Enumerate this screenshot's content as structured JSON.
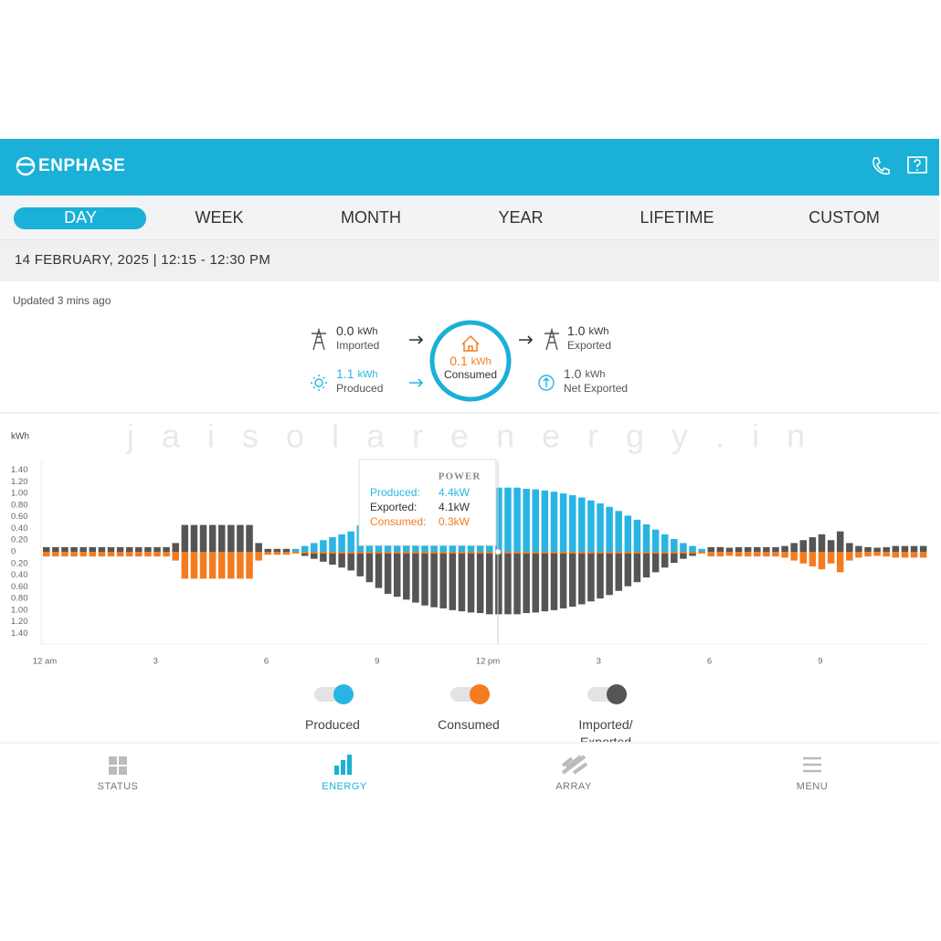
{
  "header": {
    "brand": "ENPHASE"
  },
  "tabs": [
    "DAY",
    "WEEK",
    "MONTH",
    "YEAR",
    "LIFETIME",
    "CUSTOM"
  ],
  "date_range": "14 FEBRUARY, 2025 | 12:15 - 12:30 PM",
  "updated": "Updated 3 mins ago",
  "flow": {
    "imported": {
      "value": "0.0",
      "unit": "kWh",
      "label": "Imported"
    },
    "produced": {
      "value": "1.1",
      "unit": "kWh",
      "label": "Produced"
    },
    "consumed": {
      "value": "0.1",
      "unit": "kWh",
      "label": "Consumed"
    },
    "exported": {
      "value": "1.0",
      "unit": "kWh",
      "label": "Exported"
    },
    "net_exported": {
      "value": "1.0",
      "unit": "kWh",
      "label": "Net Exported"
    }
  },
  "watermark": "j a i s o l a r e n e r g y . i n",
  "chart": {
    "type": "bar",
    "y_label": "kWh",
    "grid": false,
    "x": [
      0,
      0.25,
      0.5,
      0.75,
      1,
      1.25,
      1.5,
      1.75,
      2,
      2.25,
      2.5,
      2.75,
      3,
      3.25,
      3.5,
      3.75,
      4,
      4.25,
      4.5,
      4.75,
      5,
      5.25,
      5.5,
      5.75,
      6,
      6.25,
      6.5,
      6.75,
      7,
      7.25,
      7.5,
      7.75,
      8,
      8.25,
      8.5,
      8.75,
      9,
      9.25,
      9.5,
      9.75,
      10,
      10.25,
      10.5,
      10.75,
      11,
      11.25,
      11.5,
      11.75,
      12,
      12.25,
      12.5,
      12.75,
      13,
      13.25,
      13.5,
      13.75,
      14,
      14.25,
      14.5,
      14.75,
      15,
      15.25,
      15.5,
      15.75,
      16,
      16.25,
      16.5,
      16.75,
      17,
      17.25,
      17.5,
      17.75,
      18,
      18.25,
      18.5,
      18.75,
      19,
      19.25,
      19.5,
      19.75,
      20,
      20.25,
      20.5,
      20.75,
      21,
      21.25,
      21.5,
      21.75,
      22,
      22.25,
      22.5,
      22.75,
      23,
      23.25,
      23.5,
      23.75
    ],
    "xlim": [
      0,
      24
    ],
    "xticks": [
      {
        "value": 0,
        "label": "12 am"
      },
      3,
      6,
      9,
      {
        "value": 12,
        "label": "12 pm"
      },
      {
        "value": 15,
        "label": "3"
      },
      {
        "value": 18,
        "label": "6"
      },
      {
        "value": 21,
        "label": "9"
      }
    ],
    "ylim": [
      -1.55,
      1.55
    ],
    "yticks": [
      {
        "value": 1.4,
        "label": "1.40"
      },
      {
        "value": 1.2,
        "label": "1.20"
      },
      {
        "value": 1.0,
        "label": "1.00"
      },
      {
        "value": 0.8,
        "label": "0.80"
      },
      {
        "value": 0.6,
        "label": "0.60"
      },
      {
        "value": 0.4,
        "label": "0.40"
      },
      {
        "value": 0.2,
        "label": "0.20"
      },
      0,
      {
        "value": -0.2,
        "label": "0.20"
      },
      {
        "value": -0.4,
        "label": "0.40"
      },
      {
        "value": -0.6,
        "label": "0.60"
      },
      {
        "value": -0.8,
        "label": "0.80"
      },
      {
        "value": -1.0,
        "label": "1.00"
      },
      {
        "value": -1.2,
        "label": "1.20"
      },
      {
        "value": -1.4,
        "label": "1.40"
      }
    ],
    "series": [
      {
        "name": "Produced",
        "color": "#29b5e3",
        "values": [
          0,
          0,
          0,
          0,
          0,
          0,
          0,
          0,
          0,
          0,
          0,
          0,
          0,
          0,
          0,
          0,
          0,
          0,
          0,
          0,
          0,
          0,
          0,
          0,
          0,
          0,
          0,
          0.05,
          0.1,
          0.15,
          0.2,
          0.25,
          0.3,
          0.35,
          0.45,
          0.55,
          0.65,
          0.75,
          0.8,
          0.85,
          0.9,
          0.95,
          0.98,
          1.0,
          1.03,
          1.05,
          1.07,
          1.08,
          1.1,
          1.1,
          1.1,
          1.1,
          1.08,
          1.07,
          1.05,
          1.03,
          1.0,
          0.97,
          0.93,
          0.88,
          0.83,
          0.77,
          0.7,
          0.62,
          0.55,
          0.47,
          0.38,
          0.3,
          0.22,
          0.15,
          0.1,
          0.05,
          0,
          0,
          0,
          0,
          0,
          0,
          0,
          0,
          0,
          0,
          0,
          0,
          0,
          0,
          0,
          0,
          0,
          0,
          0,
          0,
          0,
          0,
          0,
          0
        ]
      },
      {
        "name": "Consumed",
        "color": "#f47c20",
        "values": [
          -0.08,
          -0.08,
          -0.08,
          -0.08,
          -0.08,
          -0.08,
          -0.08,
          -0.08,
          -0.08,
          -0.08,
          -0.08,
          -0.08,
          -0.08,
          -0.08,
          -0.15,
          -0.46,
          -0.46,
          -0.46,
          -0.46,
          -0.46,
          -0.46,
          -0.46,
          -0.46,
          -0.15,
          -0.05,
          -0.05,
          -0.05,
          -0.03,
          -0.03,
          -0.03,
          -0.03,
          -0.03,
          -0.03,
          -0.03,
          -0.03,
          -0.03,
          -0.03,
          -0.03,
          -0.03,
          -0.03,
          -0.03,
          -0.03,
          -0.03,
          -0.03,
          -0.03,
          -0.03,
          -0.03,
          -0.03,
          -0.03,
          -0.03,
          -0.03,
          -0.03,
          -0.03,
          -0.03,
          -0.03,
          -0.03,
          -0.03,
          -0.03,
          -0.03,
          -0.03,
          -0.03,
          -0.03,
          -0.03,
          -0.03,
          -0.03,
          -0.03,
          -0.03,
          -0.03,
          -0.03,
          -0.03,
          -0.03,
          -0.03,
          -0.08,
          -0.08,
          -0.07,
          -0.08,
          -0.08,
          -0.08,
          -0.08,
          -0.08,
          -0.1,
          -0.15,
          -0.2,
          -0.25,
          -0.3,
          -0.2,
          -0.35,
          -0.15,
          -0.1,
          -0.08,
          -0.07,
          -0.08,
          -0.1,
          -0.1,
          -0.1,
          -0.1
        ]
      },
      {
        "name": "Imported/ Exported",
        "color": "#555555",
        "values": [
          0.08,
          0.08,
          0.08,
          0.08,
          0.08,
          0.08,
          0.08,
          0.08,
          0.08,
          0.08,
          0.08,
          0.08,
          0.08,
          0.08,
          0.15,
          0.46,
          0.46,
          0.46,
          0.46,
          0.46,
          0.46,
          0.46,
          0.46,
          0.15,
          0.05,
          0.05,
          0.05,
          -0.02,
          -0.07,
          -0.12,
          -0.17,
          -0.22,
          -0.27,
          -0.32,
          -0.42,
          -0.52,
          -0.62,
          -0.72,
          -0.77,
          -0.82,
          -0.87,
          -0.92,
          -0.95,
          -0.97,
          -1.0,
          -1.02,
          -1.04,
          -1.05,
          -1.07,
          -1.07,
          -1.07,
          -1.07,
          -1.05,
          -1.04,
          -1.02,
          -1.0,
          -0.97,
          -0.94,
          -0.9,
          -0.85,
          -0.8,
          -0.74,
          -0.67,
          -0.59,
          -0.52,
          -0.44,
          -0.35,
          -0.27,
          -0.19,
          -0.12,
          -0.07,
          -0.02,
          0.08,
          0.08,
          0.07,
          0.08,
          0.08,
          0.08,
          0.08,
          0.08,
          0.1,
          0.15,
          0.2,
          0.25,
          0.3,
          0.2,
          0.35,
          0.15,
          0.1,
          0.08,
          0.07,
          0.08,
          0.1,
          0.1,
          0.1,
          0.1
        ]
      }
    ],
    "tooltip": {
      "title": "POWER",
      "rows": [
        {
          "label": "Produced:",
          "value": "4.4kW"
        },
        {
          "label": "Exported:",
          "value": "4.1kW"
        },
        {
          "label": "Consumed:",
          "value": "0.3kW"
        }
      ]
    }
  },
  "nav": [
    "STATUS",
    "ENERGY",
    "ARRAY",
    "MENU"
  ]
}
